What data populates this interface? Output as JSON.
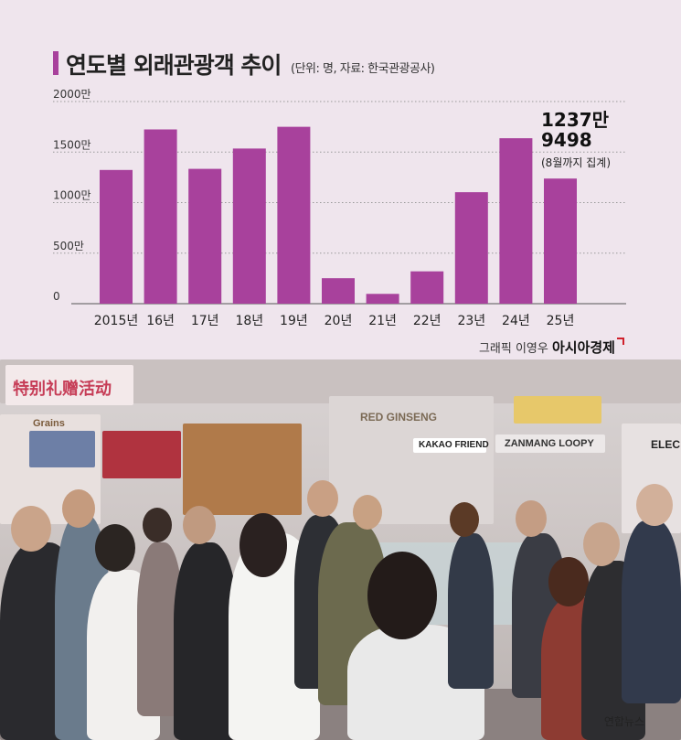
{
  "title": "연도별 외래관광객 추이",
  "subtitle": "(단위: 명, 자료: 한국관광공사)",
  "colors": {
    "bar": "#a8419c",
    "title_accent": "#a8419c",
    "grid": "#999999",
    "background": "#efe5ed"
  },
  "chart_data": {
    "type": "bar",
    "categories": [
      "2015년",
      "16년",
      "17년",
      "18년",
      "19년",
      "20년",
      "21년",
      "22년",
      "23년",
      "24년",
      "25년"
    ],
    "values": [
      1323,
      1724,
      1334,
      1535,
      1750,
      252,
      97,
      320,
      1103,
      1637,
      1238
    ],
    "ylim": [
      0,
      2000
    ],
    "yticks": [
      "0",
      "500만",
      "1000만",
      "1500만",
      "2000만"
    ],
    "grid": true,
    "annotation": {
      "line1": "1237만",
      "line2": "9498",
      "note": "(8월까지 집계)"
    }
  },
  "credit": {
    "prefix": "그래픽 이영우",
    "brand": "아시아경제"
  },
  "photo": {
    "signs": [
      "特别礼赠活动",
      "RED GINSENG",
      "KAKAO FRIEND",
      "ZANMANG LOOPY",
      "ELEC",
      "Grains"
    ],
    "credit": "연합뉴스"
  }
}
